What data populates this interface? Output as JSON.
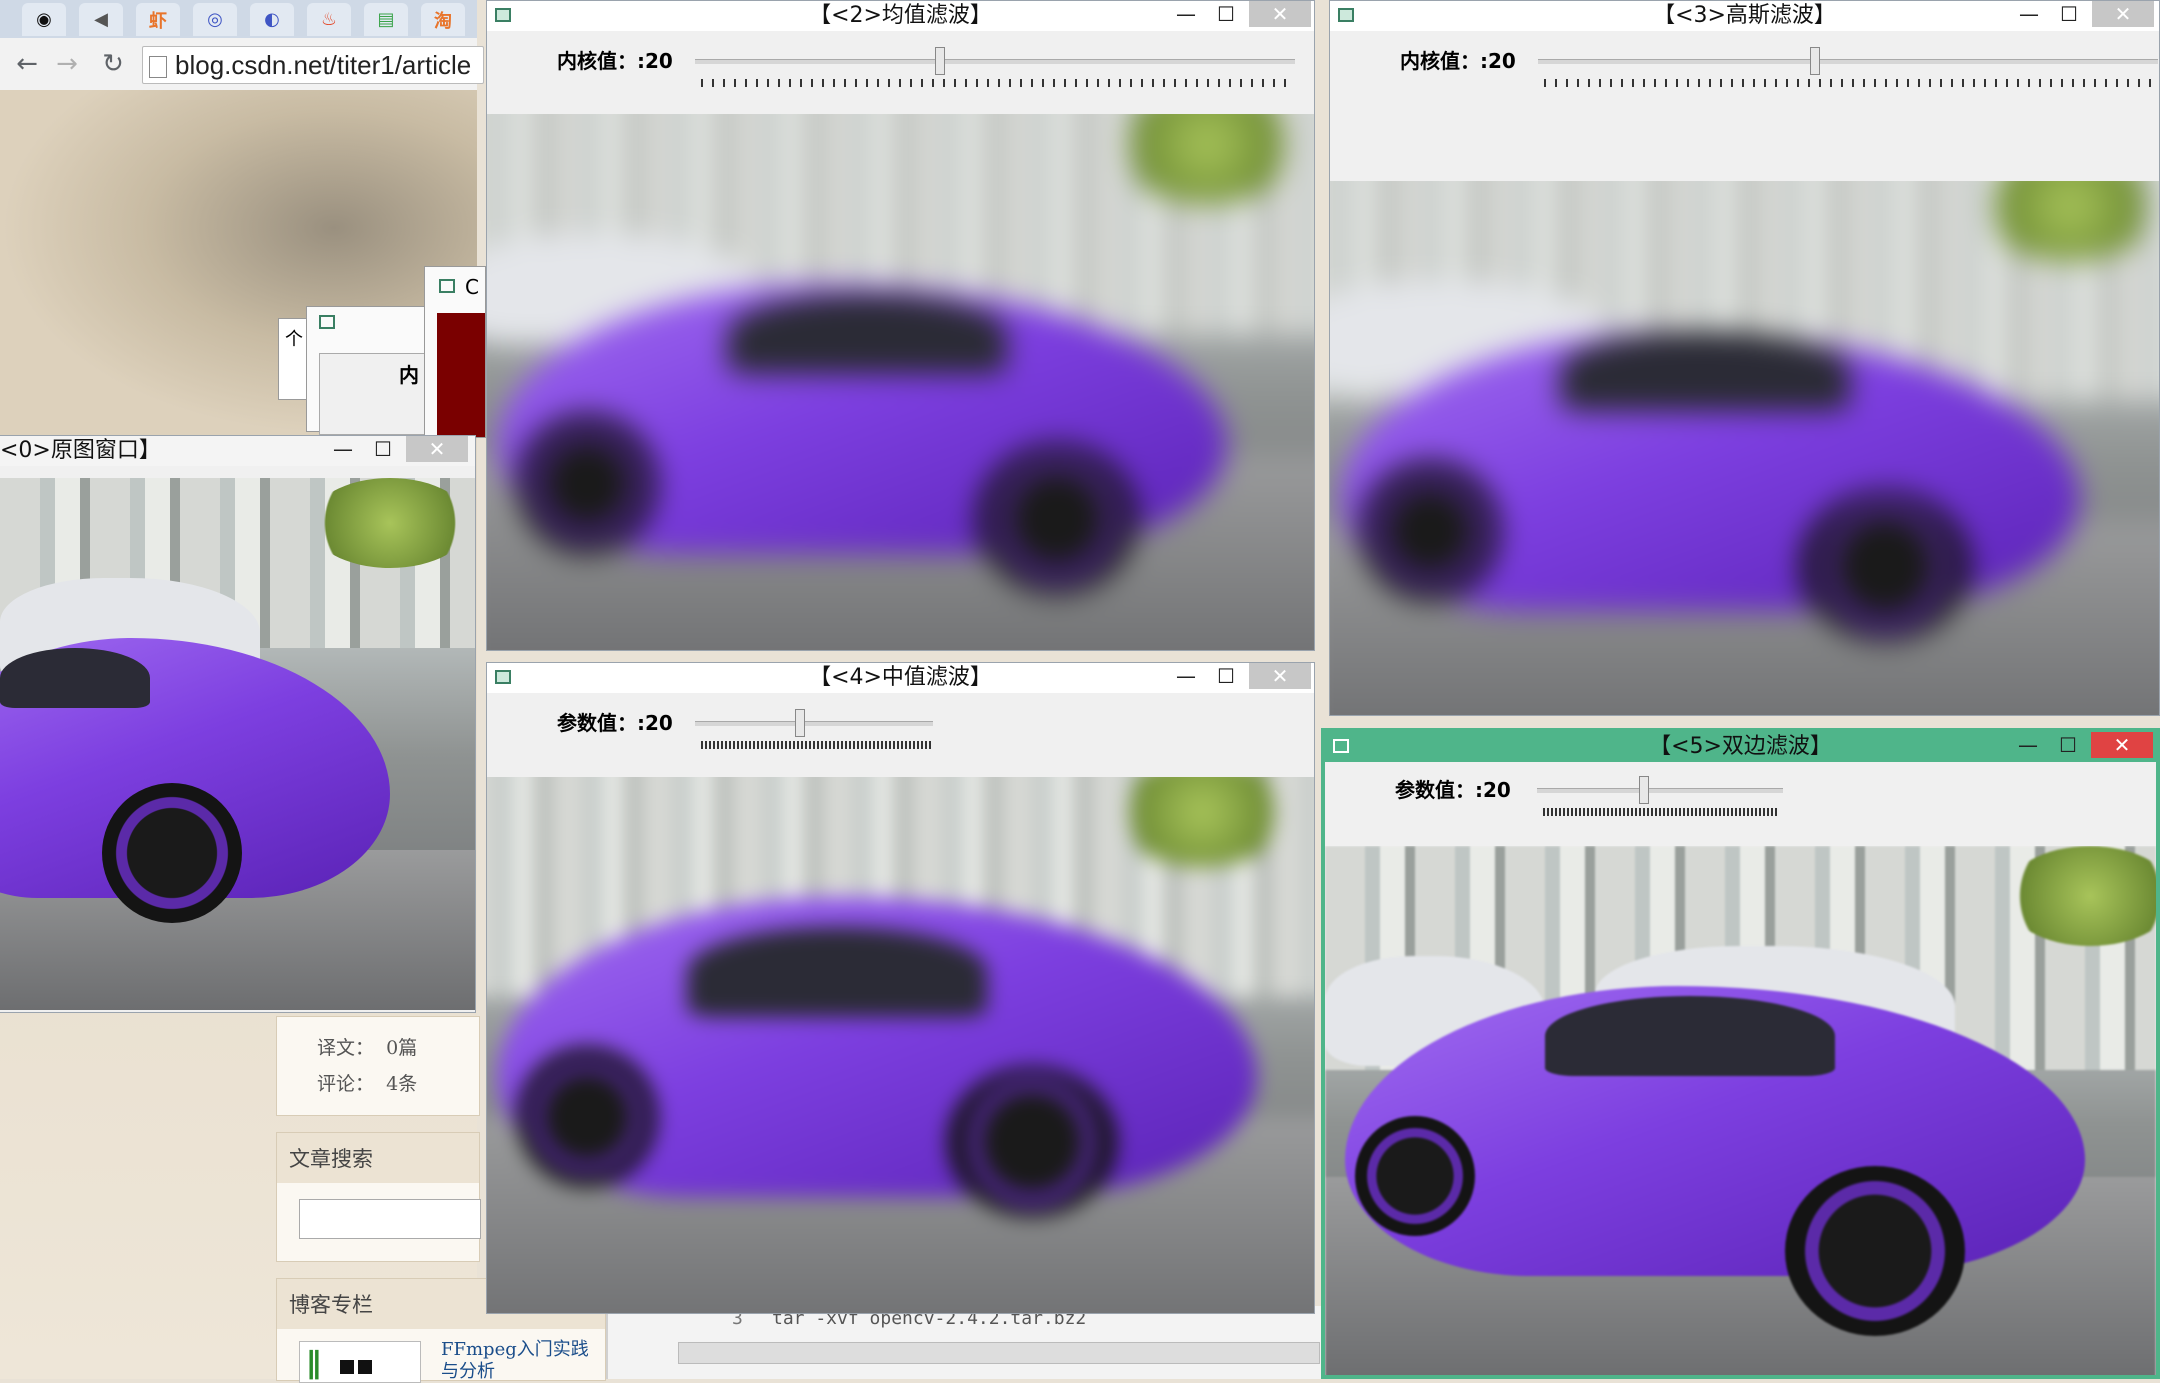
{
  "browser": {
    "tab_icons": [
      "github-icon",
      "speaker-icon",
      "shrimp-icon",
      "globe-icon",
      "app-icon",
      "fire-icon",
      "green-book-icon",
      "taobao-icon"
    ],
    "tab_glyphs": [
      "◉",
      "◀",
      "虾",
      "◎",
      "◐",
      "♨",
      "▤",
      "淘"
    ],
    "url": "blog.csdn.net/titer1/article"
  },
  "behind_windows": {
    "small1_label": "个",
    "small2_label": "内",
    "small3_label": "C"
  },
  "sidebar": {
    "stats": [
      {
        "label": "译文：",
        "value": "0篇"
      },
      {
        "label": "评论：",
        "value": "4条"
      }
    ],
    "search_title": "文章搜索",
    "column_title": "博客专栏",
    "column_item": "FFmpeg入门实践与分析"
  },
  "console": {
    "line_no": "3",
    "command": "tar -xvf opencv-2.4.2.tar.bz2"
  },
  "windows": {
    "original": {
      "title": "<0>原图窗口】"
    },
    "mean": {
      "title": "【<2>均值滤波】",
      "trackbar_label": "内核值：:20",
      "value": 20
    },
    "gaussian": {
      "title": "【<3>高斯滤波】",
      "trackbar_label": "内核值：:20",
      "value": 20
    },
    "median": {
      "title": "【<4>中值滤波】",
      "trackbar_label": "参数值：:20",
      "value": 20
    },
    "bilateral": {
      "title": "【<5>双边滤波】",
      "trackbar_label": "参数值：:20",
      "value": 20
    }
  },
  "controls": {
    "minimize": "—",
    "maximize": "☐",
    "close": "✕"
  },
  "colors": {
    "active_titlebar": "#4fb58a",
    "close_red": "#e04343",
    "car_purple": "#7d3fe0"
  }
}
